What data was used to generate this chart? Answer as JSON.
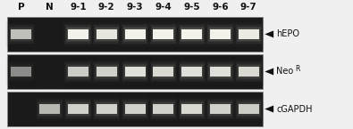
{
  "lane_labels": [
    "P",
    "N",
    "9-1",
    "9-2",
    "9-3",
    "9-4",
    "9-5",
    "9-6",
    "9-7"
  ],
  "gel_bg_dark": "#1a1a1a",
  "gel_bg_mid": "#2d2d2d",
  "gel_border_color": "#888888",
  "outer_bg_color": "#f0f0f0",
  "label_color": "#111111",
  "arrow_color": "#111111",
  "row_labels": [
    "hEPO",
    "NeoR",
    "cGAPDH"
  ],
  "figsize": [
    3.95,
    1.45
  ],
  "dpi": 100,
  "n_lanes": 9,
  "hEPO_bands": [
    1,
    0,
    1,
    1,
    1,
    1,
    1,
    1,
    1
  ],
  "NeoR_bands": [
    1,
    0,
    1,
    1,
    1,
    1,
    1,
    1,
    1
  ],
  "cGAPDH_bands": [
    0,
    1,
    1,
    1,
    1,
    1,
    1,
    1,
    1
  ],
  "hEPO_bright": [
    0.75,
    0,
    0.95,
    0.9,
    0.95,
    0.95,
    0.95,
    0.95,
    0.92
  ],
  "NeoR_bright": [
    0.55,
    0,
    0.8,
    0.82,
    0.88,
    0.85,
    0.88,
    0.88,
    0.85
  ],
  "cGAPDH_bright": [
    0,
    0.72,
    0.82,
    0.82,
    0.82,
    0.82,
    0.85,
    0.82,
    0.8
  ],
  "label_fontsize": 7.0,
  "header_fontsize": 7.5
}
